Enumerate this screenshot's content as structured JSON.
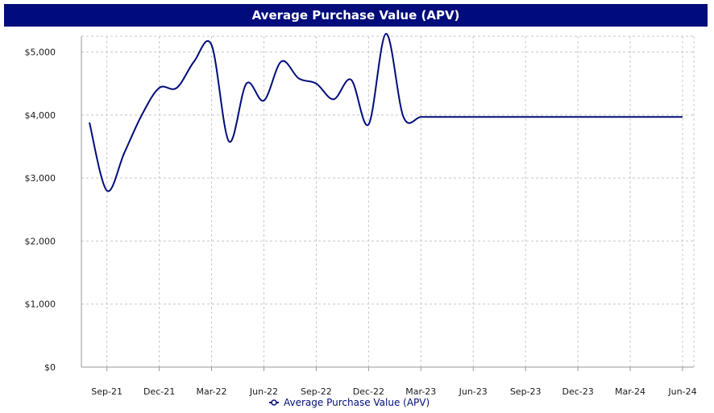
{
  "chart_data": {
    "type": "line",
    "title": "Average Purchase Value (APV)",
    "xlabel": "",
    "ylabel": "",
    "x": [
      "Aug-21",
      "Sep-21",
      "Oct-21",
      "Nov-21",
      "Dec-21",
      "Jan-22",
      "Feb-22",
      "Mar-22",
      "Apr-22",
      "May-22",
      "Jun-22",
      "Jul-22",
      "Aug-22",
      "Sep-22",
      "Oct-22",
      "Nov-22",
      "Dec-22",
      "Jan-23",
      "Feb-23",
      "Mar-23",
      "Apr-23",
      "May-23",
      "Jun-23",
      "Jul-23",
      "Aug-23",
      "Sep-23",
      "Oct-23",
      "Nov-23",
      "Dec-23",
      "Jan-24",
      "Feb-24",
      "Mar-24",
      "Apr-24",
      "May-24",
      "Jun-24"
    ],
    "x_tick_labels": [
      "Sep-21",
      "Dec-21",
      "Mar-22",
      "Jun-22",
      "Sep-22",
      "Dec-22",
      "Mar-23",
      "Jun-23",
      "Sep-23",
      "Dec-23",
      "Mar-24",
      "Jun-24"
    ],
    "x_tick_indices": [
      1,
      4,
      7,
      10,
      13,
      16,
      19,
      22,
      25,
      28,
      31,
      34
    ],
    "y_tick_labels": [
      "$0",
      "$1,000",
      "$2,000",
      "$3,000",
      "$4,000",
      "$5,000"
    ],
    "y_ticks": [
      0,
      1000,
      2000,
      3000,
      4000,
      5000
    ],
    "ylim": [
      0,
      5250
    ],
    "grid": true,
    "legend_position": "bottom",
    "series": [
      {
        "name": "Average Purchase Value (APV)",
        "color": "#000c7b",
        "values": [
          3880,
          2800,
          3400,
          4000,
          4430,
          4430,
          4850,
          5110,
          3580,
          4500,
          4230,
          4850,
          4580,
          4500,
          4250,
          4560,
          3850,
          5290,
          3970,
          3970,
          3970,
          3970,
          3970,
          3970,
          3970,
          3970,
          3970,
          3970,
          3970,
          3970,
          3970,
          3970,
          3970,
          3970,
          3970
        ]
      }
    ]
  }
}
